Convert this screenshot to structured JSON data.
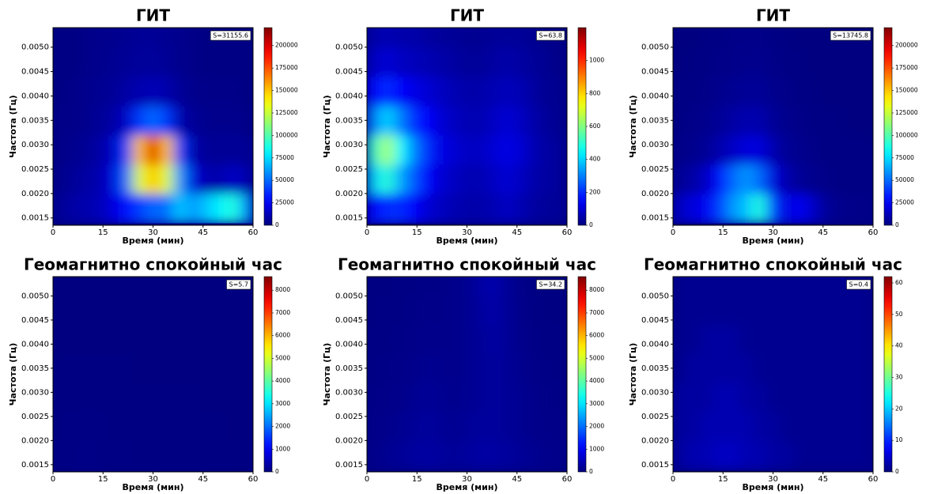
{
  "chart_data": [
    {
      "type": "heatmap",
      "colormap": "jet",
      "title": "ГИТ",
      "annotation": "S=31155.6",
      "xlabel": "Время (мин)",
      "ylabel": "Частота (Гц)",
      "x": [
        2,
        6,
        10,
        14,
        18,
        22,
        26,
        30,
        34,
        38,
        42,
        46,
        50,
        54,
        58
      ],
      "y": [
        0.0017,
        0.0023,
        0.0029,
        0.0035,
        0.0041,
        0.0047,
        0.0053
      ],
      "z": [
        [
          5000,
          8000,
          10000,
          12000,
          20000,
          30000,
          40000,
          50000,
          50000,
          70000,
          60000,
          70000,
          80000,
          90000,
          60000
        ],
        [
          3000,
          5000,
          8000,
          10000,
          20000,
          50000,
          130000,
          150000,
          130000,
          60000,
          20000,
          10000,
          10000,
          15000,
          10000
        ],
        [
          2000,
          3000,
          5000,
          8000,
          15000,
          40000,
          150000,
          200000,
          150000,
          40000,
          10000,
          5000,
          5000,
          5000,
          5000
        ],
        [
          2000,
          2000,
          3000,
          5000,
          8000,
          15000,
          40000,
          50000,
          40000,
          10000,
          5000,
          3000,
          3000,
          3000,
          2000
        ],
        [
          1000,
          2000,
          3000,
          4000,
          5000,
          8000,
          10000,
          12000,
          10000,
          5000,
          3000,
          2000,
          2000,
          2000,
          1000
        ],
        [
          1000,
          1000,
          2000,
          3000,
          4000,
          5000,
          6000,
          6000,
          5000,
          3000,
          2000,
          1000,
          1000,
          1000,
          1000
        ],
        [
          1000,
          1000,
          2000,
          3000,
          3000,
          4000,
          5000,
          5000,
          4000,
          3000,
          2000,
          1000,
          1000,
          1000,
          1000
        ]
      ],
      "xlim": [
        0,
        60
      ],
      "xticks": [
        0,
        15,
        30,
        45,
        60
      ],
      "ylim": [
        0.00135,
        0.0054
      ],
      "yticks": [
        0.0015,
        {
          "value": 0.002,
          "label": "0.0020"
        },
        0.0025,
        {
          "value": 0.003,
          "label": "0.0030"
        },
        0.0035,
        {
          "value": 0.004,
          "label": "0.0040"
        },
        0.0045,
        {
          "value": 0.005,
          "label": "0.0050"
        }
      ],
      "clim": [
        0,
        220000
      ],
      "cticks": [
        0,
        25000,
        50000,
        75000,
        100000,
        125000,
        150000,
        175000,
        200000
      ]
    },
    {
      "type": "heatmap",
      "colormap": "jet",
      "title": "ГИТ",
      "annotation": "S=63.8",
      "xlabel": "Время (мин)",
      "ylabel": "Частота (Гц)",
      "x": [
        2,
        6,
        10,
        14,
        18,
        22,
        26,
        30,
        34,
        38,
        42,
        46,
        50,
        54,
        58
      ],
      "y": [
        0.0017,
        0.0023,
        0.0029,
        0.0035,
        0.0041,
        0.0047,
        0.0053
      ],
      "z": [
        [
          150,
          200,
          200,
          150,
          100,
          80,
          60,
          50,
          50,
          60,
          80,
          60,
          40,
          30,
          30
        ],
        [
          400,
          500,
          350,
          250,
          150,
          100,
          80,
          60,
          60,
          80,
          100,
          80,
          50,
          40,
          30
        ],
        [
          500,
          650,
          450,
          300,
          200,
          120,
          100,
          80,
          80,
          100,
          120,
          100,
          60,
          40,
          30
        ],
        [
          300,
          400,
          300,
          200,
          150,
          100,
          80,
          60,
          60,
          80,
          100,
          80,
          50,
          30,
          20
        ],
        [
          150,
          200,
          150,
          120,
          100,
          80,
          60,
          50,
          50,
          60,
          70,
          60,
          40,
          20,
          20
        ],
        [
          80,
          100,
          80,
          70,
          60,
          50,
          40,
          30,
          30,
          40,
          50,
          40,
          30,
          20,
          10
        ],
        [
          50,
          60,
          50,
          50,
          40,
          30,
          30,
          20,
          20,
          30,
          30,
          30,
          20,
          10,
          10
        ]
      ],
      "xlim": [
        0,
        60
      ],
      "xticks": [
        0,
        15,
        30,
        45,
        60
      ],
      "ylim": [
        0.00135,
        0.0054
      ],
      "yticks": [
        0.0015,
        {
          "value": 0.002,
          "label": "0.0020"
        },
        0.0025,
        {
          "value": 0.003,
          "label": "0.0030"
        },
        0.0035,
        {
          "value": 0.004,
          "label": "0.0040"
        },
        0.0045,
        {
          "value": 0.005,
          "label": "0.0050"
        }
      ],
      "clim": [
        0,
        1200
      ],
      "cticks": [
        0,
        200,
        400,
        600,
        800,
        1000
      ]
    },
    {
      "type": "heatmap",
      "colormap": "jet",
      "title": "ГИТ",
      "annotation": "S=13745.8",
      "xlabel": "Время (мин)",
      "ylabel": "Частота (Гц)",
      "x": [
        2,
        6,
        10,
        14,
        18,
        22,
        26,
        30,
        34,
        38,
        42,
        46,
        50,
        54,
        58
      ],
      "y": [
        0.0017,
        0.0023,
        0.0029,
        0.0035,
        0.0041,
        0.0047,
        0.0053
      ],
      "z": [
        [
          15000,
          20000,
          25000,
          40000,
          60000,
          70000,
          90000,
          40000,
          20000,
          25000,
          15000,
          5000,
          3000,
          2000,
          2000
        ],
        [
          5000,
          8000,
          15000,
          30000,
          50000,
          60000,
          50000,
          20000,
          10000,
          5000,
          3000,
          2000,
          1000,
          1000,
          1000
        ],
        [
          2000,
          3000,
          5000,
          10000,
          15000,
          20000,
          20000,
          10000,
          5000,
          3000,
          2000,
          1000,
          1000,
          1000,
          1000
        ],
        [
          1000,
          2000,
          3000,
          5000,
          8000,
          10000,
          10000,
          5000,
          3000,
          2000,
          1000,
          1000,
          1000,
          0,
          0
        ],
        [
          1000,
          1000,
          2000,
          3000,
          4000,
          5000,
          5000,
          3000,
          2000,
          1000,
          1000,
          0,
          0,
          0,
          0
        ],
        [
          0,
          1000,
          1000,
          2000,
          2000,
          3000,
          3000,
          2000,
          1000,
          1000,
          0,
          0,
          0,
          0,
          0
        ],
        [
          0,
          0,
          1000,
          1000,
          2000,
          2000,
          2000,
          1000,
          1000,
          0,
          0,
          0,
          0,
          0,
          0
        ]
      ],
      "xlim": [
        0,
        60
      ],
      "xticks": [
        0,
        15,
        30,
        45,
        60
      ],
      "ylim": [
        0.00135,
        0.0054
      ],
      "yticks": [
        0.0015,
        {
          "value": 0.002,
          "label": "0.0020"
        },
        0.0025,
        {
          "value": 0.003,
          "label": "0.0030"
        },
        0.0035,
        {
          "value": 0.004,
          "label": "0.0040"
        },
        0.0045,
        {
          "value": 0.005,
          "label": "0.0050"
        }
      ],
      "clim": [
        0,
        220000
      ],
      "cticks": [
        0,
        25000,
        50000,
        75000,
        100000,
        125000,
        150000,
        175000,
        200000
      ]
    },
    {
      "type": "heatmap",
      "colormap": "jet",
      "title": "Геомагнитно спокойный час",
      "annotation": "S=5.7",
      "xlabel": "Время (мин)",
      "ylabel": "Частота (Гц)",
      "x": [
        2,
        6,
        10,
        14,
        18,
        22,
        26,
        30,
        34,
        38,
        42,
        46,
        50,
        54,
        58
      ],
      "y": [
        0.0017,
        0.0023,
        0.0029,
        0.0035,
        0.0041,
        0.0047,
        0.0053
      ],
      "z": [
        [
          40,
          50,
          60,
          50,
          40,
          40,
          30,
          30,
          30,
          30,
          30,
          30,
          20,
          20,
          20
        ],
        [
          30,
          40,
          50,
          40,
          30,
          30,
          20,
          20,
          20,
          20,
          20,
          20,
          20,
          10,
          10
        ],
        [
          20,
          30,
          30,
          30,
          20,
          20,
          20,
          20,
          20,
          20,
          20,
          10,
          10,
          10,
          10
        ],
        [
          20,
          20,
          20,
          20,
          20,
          20,
          10,
          10,
          10,
          10,
          10,
          10,
          10,
          10,
          10
        ],
        [
          10,
          10,
          10,
          10,
          10,
          10,
          10,
          10,
          10,
          10,
          10,
          10,
          10,
          10,
          10
        ],
        [
          10,
          10,
          10,
          10,
          10,
          10,
          10,
          10,
          10,
          10,
          10,
          10,
          10,
          10,
          10
        ],
        [
          10,
          10,
          10,
          10,
          10,
          10,
          10,
          10,
          10,
          10,
          10,
          10,
          10,
          10,
          10
        ]
      ],
      "xlim": [
        0,
        60
      ],
      "xticks": [
        0,
        15,
        30,
        45,
        60
      ],
      "ylim": [
        0.00135,
        0.0054
      ],
      "yticks": [
        0.0015,
        {
          "value": 0.002,
          "label": "0.0020"
        },
        0.0025,
        {
          "value": 0.003,
          "label": "0.0030"
        },
        0.0035,
        {
          "value": 0.004,
          "label": "0.0040"
        },
        0.0045,
        {
          "value": 0.005,
          "label": "0.0050"
        }
      ],
      "clim": [
        0,
        8600
      ],
      "cticks": [
        0,
        1000,
        2000,
        3000,
        4000,
        5000,
        6000,
        7000,
        8000
      ]
    },
    {
      "type": "heatmap",
      "colormap": "jet",
      "title": "Геомагнитно спокойный час",
      "annotation": "S=34.2",
      "xlabel": "Время (мин)",
      "ylabel": "Частота (Гц)",
      "x": [
        2,
        6,
        10,
        14,
        18,
        22,
        26,
        30,
        34,
        38,
        42,
        46,
        50,
        54,
        58
      ],
      "y": [
        0.0017,
        0.0023,
        0.0029,
        0.0035,
        0.0041,
        0.0047,
        0.0053
      ],
      "z": [
        [
          100,
          150,
          200,
          250,
          300,
          250,
          200,
          250,
          300,
          300,
          250,
          200,
          150,
          100,
          100
        ],
        [
          80,
          100,
          150,
          200,
          250,
          200,
          150,
          200,
          250,
          250,
          200,
          150,
          100,
          80,
          80
        ],
        [
          60,
          80,
          100,
          150,
          200,
          150,
          120,
          150,
          200,
          250,
          200,
          150,
          100,
          60,
          60
        ],
        [
          50,
          60,
          80,
          100,
          150,
          120,
          100,
          150,
          200,
          250,
          200,
          120,
          80,
          50,
          50
        ],
        [
          40,
          50,
          60,
          80,
          100,
          100,
          100,
          150,
          200,
          300,
          200,
          100,
          60,
          40,
          40
        ],
        [
          30,
          40,
          50,
          60,
          80,
          80,
          100,
          150,
          250,
          350,
          200,
          100,
          50,
          30,
          30
        ],
        [
          30,
          30,
          40,
          50,
          60,
          60,
          100,
          150,
          300,
          400,
          200,
          80,
          40,
          30,
          30
        ]
      ],
      "xlim": [
        0,
        60
      ],
      "xticks": [
        0,
        15,
        30,
        45,
        60
      ],
      "ylim": [
        0.00135,
        0.0054
      ],
      "yticks": [
        0.0015,
        {
          "value": 0.002,
          "label": "0.0020"
        },
        0.0025,
        {
          "value": 0.003,
          "label": "0.0030"
        },
        0.0035,
        {
          "value": 0.004,
          "label": "0.0040"
        },
        0.0045,
        {
          "value": 0.005,
          "label": "0.0050"
        }
      ],
      "clim": [
        0,
        8600
      ],
      "cticks": [
        0,
        1000,
        2000,
        3000,
        4000,
        5000,
        6000,
        7000,
        8000
      ]
    },
    {
      "type": "heatmap",
      "colormap": "jet",
      "title": "Геомагнитно спокойный час",
      "annotation": "S=0.4",
      "xlabel": "Время (мин)",
      "ylabel": "Частота (Гц)",
      "x": [
        2,
        6,
        10,
        14,
        18,
        22,
        26,
        30,
        34,
        38,
        42,
        46,
        50,
        54,
        58
      ],
      "y": [
        0.0017,
        0.0023,
        0.0029,
        0.0035,
        0.0041,
        0.0047,
        0.0053
      ],
      "z": [
        [
          2,
          3,
          3,
          4,
          4,
          3,
          3,
          2,
          2,
          1,
          1,
          1,
          1,
          1,
          1
        ],
        [
          2,
          2,
          3,
          3,
          3,
          3,
          2,
          2,
          1,
          1,
          1,
          1,
          1,
          1,
          1
        ],
        [
          2,
          2,
          2,
          3,
          3,
          2,
          2,
          1,
          1,
          1,
          1,
          1,
          1,
          1,
          1
        ],
        [
          1,
          2,
          2,
          2,
          2,
          2,
          1,
          1,
          1,
          1,
          1,
          1,
          1,
          1,
          1
        ],
        [
          1,
          1,
          2,
          2,
          2,
          1,
          1,
          1,
          1,
          1,
          1,
          1,
          1,
          1,
          1
        ],
        [
          1,
          1,
          1,
          1,
          1,
          1,
          1,
          1,
          1,
          1,
          1,
          1,
          1,
          1,
          1
        ],
        [
          1,
          1,
          1,
          1,
          1,
          1,
          1,
          1,
          1,
          1,
          1,
          1,
          1,
          1,
          1
        ]
      ],
      "xlim": [
        0,
        60
      ],
      "xticks": [
        0,
        15,
        30,
        45,
        60
      ],
      "ylim": [
        0.00135,
        0.0054
      ],
      "yticks": [
        0.0015,
        {
          "value": 0.002,
          "label": "0.0020"
        },
        0.0025,
        {
          "value": 0.003,
          "label": "0.0030"
        },
        0.0035,
        {
          "value": 0.004,
          "label": "0.0040"
        },
        0.0045,
        {
          "value": 0.005,
          "label": "0.0050"
        }
      ],
      "clim": [
        0,
        62
      ],
      "cticks": [
        0,
        10,
        20,
        30,
        40,
        50,
        60
      ]
    }
  ]
}
